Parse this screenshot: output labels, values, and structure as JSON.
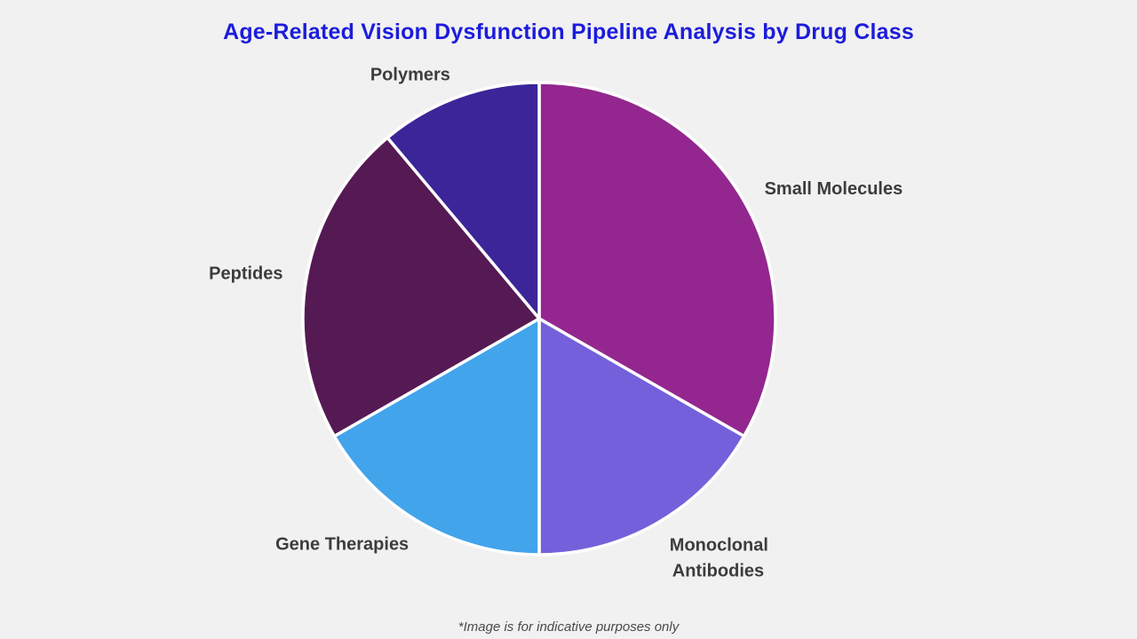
{
  "page": {
    "background_color": "#f1f1f1",
    "footer_note": "*Image is for indicative purposes only",
    "footer_color": "#4a4a4a"
  },
  "chart_data": {
    "type": "pie",
    "title": "Age-Related Vision Dysfunction Pipeline Analysis by Drug Class",
    "title_color": "#1c1cdb",
    "legend": "none",
    "data_labels": "category-names-outside",
    "start_angle_deg": 0,
    "direction": "clockwise",
    "label_color": "#3c3c3c",
    "slice_border_color": "#ffffff",
    "slices": [
      {
        "label": "Small Molecules",
        "value": 33.3,
        "color": "#93278f"
      },
      {
        "label": "Monoclonal Antibodies",
        "value": 16.7,
        "color": "#7560db"
      },
      {
        "label": "Gene Therapies",
        "value": 16.7,
        "color": "#42a4eb"
      },
      {
        "label": "Peptides",
        "value": 22.2,
        "color": "#551a54"
      },
      {
        "label": "Polymers",
        "value": 11.1,
        "color": "#3b2598"
      }
    ]
  }
}
